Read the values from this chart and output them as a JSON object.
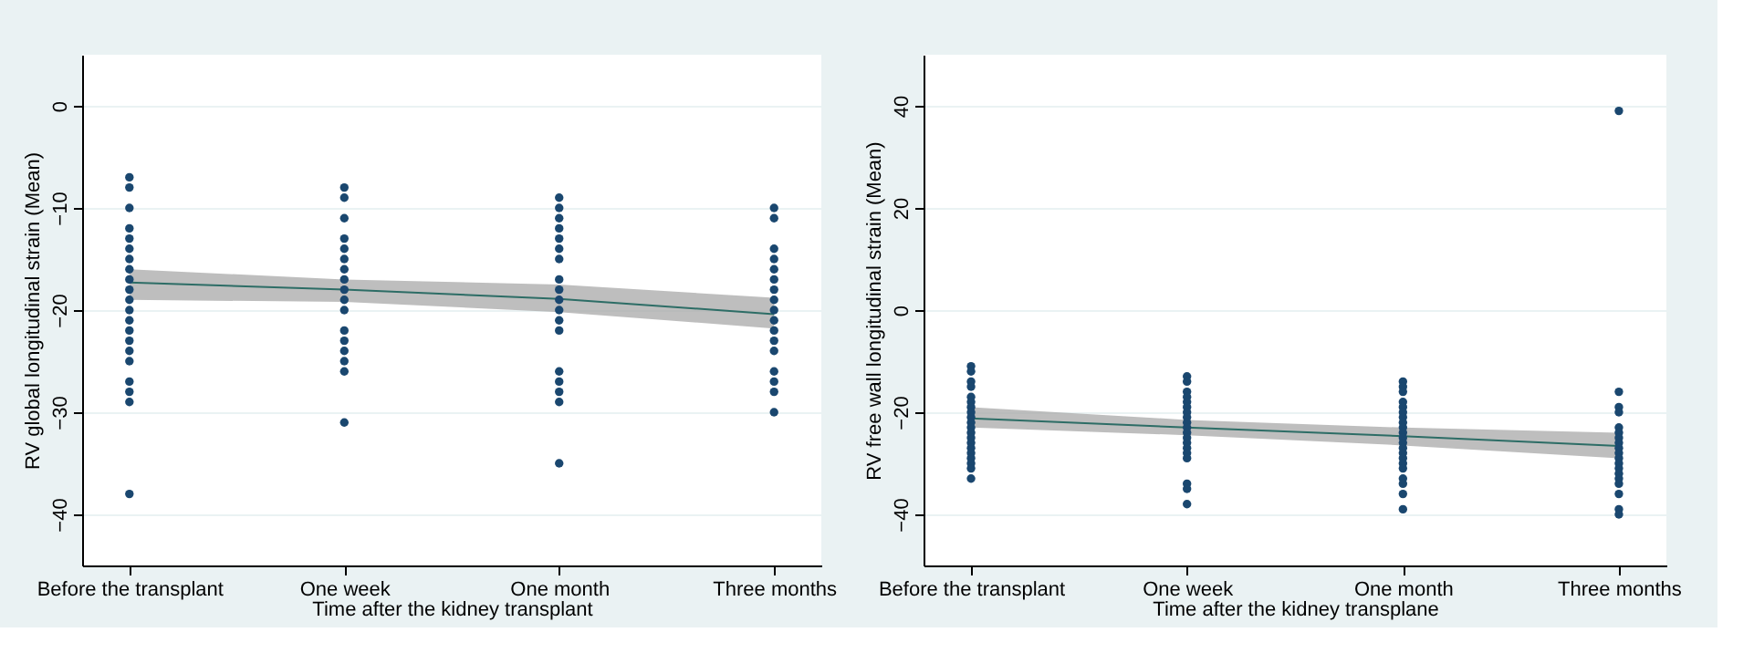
{
  "chart_data": [
    {
      "type": "scatter",
      "xlabel": "Time after the kidney transplant",
      "ylabel": "RV global longitudinal strain (Mean)",
      "categories": [
        "Before the transplant",
        "One week",
        "One month",
        "Three months"
      ],
      "ylim": [
        -45,
        5
      ],
      "yticks": [
        -40,
        -30,
        -20,
        -10,
        0
      ],
      "grid": "y",
      "series": [
        {
          "type": "scatter",
          "marker": "circle",
          "color": "#1a476f",
          "x": [
            "Before the transplant",
            "Before the transplant",
            "Before the transplant",
            "Before the transplant",
            "Before the transplant",
            "Before the transplant",
            "Before the transplant",
            "Before the transplant",
            "Before the transplant",
            "Before the transplant",
            "Before the transplant",
            "Before the transplant",
            "Before the transplant",
            "Before the transplant",
            "Before the transplant",
            "Before the transplant",
            "Before the transplant",
            "Before the transplant",
            "Before the transplant",
            "Before the transplant",
            "Before the transplant",
            "One week",
            "One week",
            "One week",
            "One week",
            "One week",
            "One week",
            "One week",
            "One week",
            "One week",
            "One week",
            "One week",
            "One week",
            "One week",
            "One week",
            "One week",
            "One week",
            "One week",
            "One month",
            "One month",
            "One month",
            "One month",
            "One month",
            "One month",
            "One month",
            "One month",
            "One month",
            "One month",
            "One month",
            "One month",
            "One month",
            "One month",
            "One month",
            "One month",
            "One month",
            "One month",
            "Three months",
            "Three months",
            "Three months",
            "Three months",
            "Three months",
            "Three months",
            "Three months",
            "Three months",
            "Three months",
            "Three months",
            "Three months",
            "Three months",
            "Three months",
            "Three months",
            "Three months",
            "Three months",
            "Three months"
          ],
          "values": [
            -7,
            -8,
            -10,
            -12,
            -13,
            -14,
            -15,
            -16,
            -17,
            -18,
            -19,
            -20,
            -21,
            -22,
            -23,
            -24,
            -25,
            -27,
            -28,
            -29,
            -38,
            -8,
            -9,
            -11,
            -13,
            -14,
            -15,
            -16,
            -17,
            -18,
            -19,
            -20,
            -22,
            -23,
            -24,
            -25,
            -26,
            -31,
            -9,
            -10,
            -11,
            -12,
            -13,
            -14,
            -15,
            -17,
            -18,
            -19,
            -20,
            -21,
            -22,
            -26,
            -27,
            -28,
            -29,
            -35,
            -10,
            -11,
            -14,
            -15,
            -16,
            -17,
            -18,
            -19,
            -20,
            -21,
            -22,
            -23,
            -24,
            -26,
            -27,
            -28,
            -30
          ]
        },
        {
          "type": "line",
          "color": "#2d6d66",
          "values": [
            -17.3,
            -18,
            -18.9,
            -20.4
          ],
          "lower": [
            -19,
            -19.2,
            -20.2,
            -21.8
          ],
          "upper": [
            -16,
            -17,
            -17.5,
            -18.8
          ]
        }
      ]
    },
    {
      "type": "scatter",
      "xlabel": "Time after the kidney transplane",
      "ylabel": "RV free wall longitudinal strain (Mean)",
      "categories": [
        "Before the transplant",
        "One week",
        "One month",
        "Three months"
      ],
      "ylim": [
        -50,
        50
      ],
      "yticks": [
        -40,
        -20,
        0,
        20,
        40
      ],
      "grid": "y",
      "series": [
        {
          "type": "scatter",
          "marker": "circle",
          "color": "#1a476f",
          "x": [
            "Before the transplant",
            "Before the transplant",
            "Before the transplant",
            "Before the transplant",
            "Before the transplant",
            "Before the transplant",
            "Before the transplant",
            "Before the transplant",
            "Before the transplant",
            "Before the transplant",
            "Before the transplant",
            "Before the transplant",
            "Before the transplant",
            "Before the transplant",
            "Before the transplant",
            "Before the transplant",
            "Before the transplant",
            "Before the transplant",
            "Before the transplant",
            "Before the transplant",
            "One week",
            "One week",
            "One week",
            "One week",
            "One week",
            "One week",
            "One week",
            "One week",
            "One week",
            "One week",
            "One week",
            "One week",
            "One week",
            "One week",
            "One week",
            "One week",
            "One week",
            "One week",
            "One week",
            "One month",
            "One month",
            "One month",
            "One month",
            "One month",
            "One month",
            "One month",
            "One month",
            "One month",
            "One month",
            "One month",
            "One month",
            "One month",
            "One month",
            "One month",
            "One month",
            "One month",
            "One month",
            "One month",
            "One month",
            "One month",
            "Three months",
            "Three months",
            "Three months",
            "Three months",
            "Three months",
            "Three months",
            "Three months",
            "Three months",
            "Three months",
            "Three months",
            "Three months",
            "Three months",
            "Three months",
            "Three months",
            "Three months",
            "Three months",
            "Three months",
            "Three months",
            "Three months"
          ],
          "values": [
            -11,
            -12,
            -14,
            -15,
            -17,
            -18,
            -19,
            -20,
            -21,
            -22,
            -23,
            -24,
            -25,
            -26,
            -27,
            -28,
            -29,
            -30,
            -31,
            -33,
            -13,
            -14,
            -16,
            -17,
            -18,
            -19,
            -20,
            -21,
            -22,
            -23,
            -24,
            -25,
            -26,
            -27,
            -28,
            -29,
            -34,
            -35,
            -38,
            -14,
            -15,
            -16,
            -18,
            -19,
            -20,
            -21,
            -22,
            -23,
            -24,
            -25,
            -26,
            -27,
            -28,
            -29,
            -30,
            -31,
            -33,
            -34,
            -36,
            -39,
            39,
            -16,
            -19,
            -20,
            -23,
            -24,
            -25,
            -26,
            -27,
            -28,
            -29,
            -30,
            -31,
            -32,
            -33,
            -34,
            -36,
            -39,
            -40
          ]
        },
        {
          "type": "line",
          "color": "#2d6d66",
          "values": [
            -21.2,
            -23,
            -24.7,
            -26.6
          ],
          "lower": [
            -23,
            -24.5,
            -26.5,
            -29
          ],
          "upper": [
            -19,
            -21.5,
            -23,
            -24
          ]
        }
      ]
    }
  ]
}
